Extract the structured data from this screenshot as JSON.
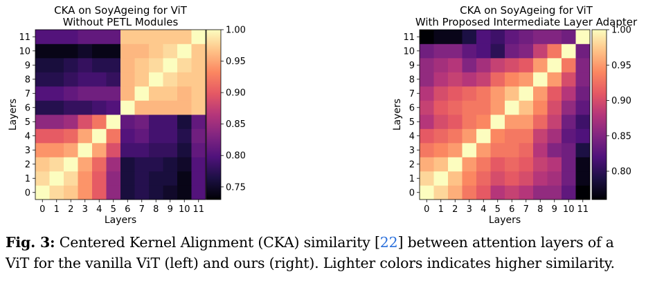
{
  "chart_data": [
    {
      "type": "heatmap",
      "title": "CKA on SoyAgeing for ViT",
      "subtitle": "Without PETL Modules",
      "xlabel": "Layers",
      "ylabel": "Layers",
      "x_ticks": [
        "0",
        "1",
        "2",
        "3",
        "4",
        "5",
        "6",
        "7",
        "8",
        "9",
        "10",
        "11"
      ],
      "y_ticks": [
        "0",
        "1",
        "2",
        "3",
        "4",
        "5",
        "6",
        "7",
        "8",
        "9",
        "10",
        "11"
      ],
      "colorbar": {
        "min": 0.73,
        "max": 1.0,
        "ticks": [
          "0.75",
          "0.80",
          "0.85",
          "0.90",
          "0.95",
          "1.00"
        ],
        "tick_values": [
          0.75,
          0.8,
          0.85,
          0.9,
          0.95,
          1.0
        ],
        "colormap": "magma"
      },
      "values": [
        [
          1.0,
          0.98,
          0.97,
          0.94,
          0.9,
          0.84,
          0.76,
          0.77,
          0.76,
          0.75,
          0.74,
          0.8
        ],
        [
          0.98,
          1.0,
          0.98,
          0.94,
          0.9,
          0.84,
          0.76,
          0.77,
          0.76,
          0.76,
          0.74,
          0.8
        ],
        [
          0.97,
          0.98,
          1.0,
          0.95,
          0.91,
          0.85,
          0.76,
          0.77,
          0.77,
          0.76,
          0.75,
          0.8
        ],
        [
          0.94,
          0.94,
          0.95,
          1.0,
          0.95,
          0.89,
          0.79,
          0.79,
          0.78,
          0.78,
          0.76,
          0.81
        ],
        [
          0.9,
          0.9,
          0.91,
          0.95,
          1.0,
          0.92,
          0.8,
          0.81,
          0.79,
          0.79,
          0.77,
          0.82
        ],
        [
          0.84,
          0.84,
          0.85,
          0.89,
          0.92,
          1.0,
          0.81,
          0.82,
          0.79,
          0.79,
          0.76,
          0.81
        ],
        [
          0.77,
          0.77,
          0.78,
          0.78,
          0.79,
          0.8,
          1.0,
          0.96,
          0.96,
          0.96,
          0.96,
          0.97
        ],
        [
          0.8,
          0.8,
          0.81,
          0.82,
          0.82,
          0.82,
          0.96,
          1.0,
          0.97,
          0.97,
          0.96,
          0.97
        ],
        [
          0.77,
          0.77,
          0.78,
          0.79,
          0.79,
          0.78,
          0.96,
          0.97,
          1.0,
          0.98,
          0.97,
          0.97
        ],
        [
          0.76,
          0.76,
          0.77,
          0.78,
          0.77,
          0.77,
          0.96,
          0.97,
          0.98,
          1.0,
          0.98,
          0.97
        ],
        [
          0.74,
          0.74,
          0.74,
          0.75,
          0.74,
          0.74,
          0.96,
          0.96,
          0.97,
          0.98,
          1.0,
          0.97
        ],
        [
          0.8,
          0.8,
          0.8,
          0.81,
          0.81,
          0.81,
          0.97,
          0.97,
          0.97,
          0.97,
          0.97,
          1.0
        ]
      ]
    },
    {
      "type": "heatmap",
      "title": "CKA on SoyAgeing for ViT",
      "subtitle": "With Proposed Intermediate Layer Adapter",
      "xlabel": "Layers",
      "ylabel": "Layers",
      "x_ticks": [
        "0",
        "1",
        "2",
        "3",
        "4",
        "5",
        "6",
        "7",
        "8",
        "9",
        "10",
        "11"
      ],
      "y_ticks": [
        "0",
        "1",
        "2",
        "3",
        "4",
        "5",
        "6",
        "7",
        "8",
        "9",
        "10",
        "11"
      ],
      "colorbar": {
        "min": 0.76,
        "max": 1.0,
        "ticks": [
          "0.80",
          "0.85",
          "0.90",
          "0.95",
          "1.00"
        ],
        "tick_values": [
          0.8,
          0.85,
          0.9,
          0.95,
          1.0
        ],
        "colormap": "magma"
      },
      "values": [
        [
          1.0,
          0.98,
          0.96,
          0.93,
          0.91,
          0.88,
          0.89,
          0.88,
          0.86,
          0.86,
          0.83,
          0.76
        ],
        [
          0.98,
          1.0,
          0.97,
          0.94,
          0.92,
          0.9,
          0.91,
          0.9,
          0.88,
          0.87,
          0.84,
          0.77
        ],
        [
          0.96,
          0.97,
          1.0,
          0.95,
          0.93,
          0.91,
          0.92,
          0.91,
          0.89,
          0.88,
          0.84,
          0.77
        ],
        [
          0.93,
          0.94,
          0.95,
          1.0,
          0.95,
          0.93,
          0.93,
          0.92,
          0.88,
          0.85,
          0.84,
          0.79
        ],
        [
          0.91,
          0.92,
          0.93,
          0.95,
          1.0,
          0.94,
          0.93,
          0.93,
          0.89,
          0.87,
          0.83,
          0.82
        ],
        [
          0.88,
          0.9,
          0.91,
          0.93,
          0.94,
          1.0,
          0.95,
          0.95,
          0.92,
          0.89,
          0.84,
          0.81
        ],
        [
          0.89,
          0.91,
          0.92,
          0.93,
          0.93,
          0.95,
          1.0,
          0.97,
          0.94,
          0.9,
          0.86,
          0.83
        ],
        [
          0.88,
          0.9,
          0.91,
          0.92,
          0.93,
          0.95,
          0.97,
          1.0,
          0.95,
          0.91,
          0.88,
          0.84
        ],
        [
          0.86,
          0.88,
          0.89,
          0.88,
          0.89,
          0.92,
          0.94,
          0.95,
          1.0,
          0.95,
          0.9,
          0.85
        ],
        [
          0.86,
          0.87,
          0.88,
          0.85,
          0.87,
          0.89,
          0.9,
          0.91,
          0.95,
          1.0,
          0.93,
          0.85
        ],
        [
          0.84,
          0.85,
          0.85,
          0.83,
          0.82,
          0.8,
          0.84,
          0.85,
          0.89,
          0.93,
          1.0,
          0.84
        ],
        [
          0.76,
          0.77,
          0.77,
          0.79,
          0.82,
          0.81,
          0.83,
          0.84,
          0.85,
          0.85,
          0.84,
          1.0
        ]
      ]
    }
  ],
  "caption": {
    "label": "Fig. 3:",
    "line1_pre": " Centered Kernel Alignment (CKA) similarity [",
    "ref": "22",
    "line1_post": "] between attention layers of a",
    "line2": "ViT for the vanilla ViT (left) and ours (right). Lighter colors indicates higher similarity."
  }
}
